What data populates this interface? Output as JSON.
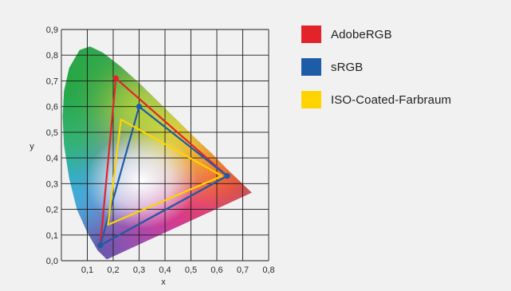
{
  "chart_data": {
    "type": "scatter",
    "title": "",
    "xlabel": "x",
    "ylabel": "y",
    "xlim": [
      0,
      0.8
    ],
    "ylim": [
      0,
      0.9
    ],
    "x_ticks": [
      "0,1",
      "0,2",
      "0,3",
      "0,4",
      "0,5",
      "0,6",
      "0,7",
      "0,8"
    ],
    "y_ticks": [
      "0,0",
      "0,1",
      "0,2",
      "0,3",
      "0,4",
      "0,5",
      "0,6",
      "0,7",
      "0,8",
      "0,9"
    ],
    "grid": true,
    "legend_position": "right",
    "spectral_locus": [
      [
        0.175,
        0.005
      ],
      [
        0.14,
        0.04
      ],
      [
        0.1,
        0.11
      ],
      [
        0.06,
        0.2
      ],
      [
        0.03,
        0.32
      ],
      [
        0.01,
        0.45
      ],
      [
        0.005,
        0.56
      ],
      [
        0.01,
        0.66
      ],
      [
        0.03,
        0.75
      ],
      [
        0.07,
        0.82
      ],
      [
        0.11,
        0.834
      ],
      [
        0.16,
        0.81
      ],
      [
        0.23,
        0.755
      ],
      [
        0.3,
        0.692
      ],
      [
        0.37,
        0.623
      ],
      [
        0.44,
        0.554
      ],
      [
        0.51,
        0.484
      ],
      [
        0.58,
        0.418
      ],
      [
        0.64,
        0.356
      ],
      [
        0.69,
        0.308
      ],
      [
        0.735,
        0.265
      ],
      [
        0.175,
        0.005
      ]
    ],
    "series": [
      {
        "name": "AdobeRGB",
        "color": "#e2232a",
        "points": [
          [
            0.64,
            0.33
          ],
          [
            0.21,
            0.71
          ],
          [
            0.15,
            0.06
          ]
        ]
      },
      {
        "name": "sRGB",
        "color": "#1d5ca6",
        "points": [
          [
            0.64,
            0.33
          ],
          [
            0.3,
            0.6
          ],
          [
            0.15,
            0.06
          ]
        ]
      },
      {
        "name": "ISO-Coated-Farbraum",
        "color": "#ffd400",
        "points": [
          [
            0.62,
            0.33
          ],
          [
            0.23,
            0.55
          ],
          [
            0.18,
            0.14
          ]
        ]
      }
    ]
  }
}
